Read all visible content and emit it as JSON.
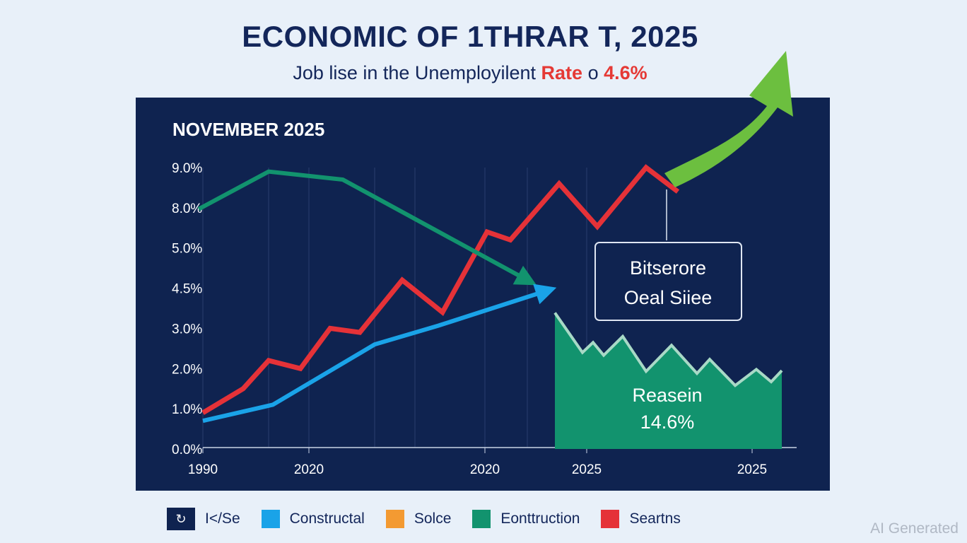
{
  "title": "ECONOMIC OF 1THRAR T, 2025",
  "subtitle": {
    "text": "Job lise in the Unemployilent",
    "highlight": "Rate",
    "connector": "o",
    "value": "4.6%"
  },
  "panel_heading": "NOVEMBER 2025",
  "annotation": {
    "line1": "Bitserore",
    "line2": "Oeal Siiee"
  },
  "area_label": {
    "line1": "Reasein",
    "line2": "14.6%"
  },
  "legend": [
    {
      "label": "I</Se",
      "color": "#0f2350",
      "icon": "refresh-icon"
    },
    {
      "label": "Constructal",
      "color": "#1aa3e8"
    },
    {
      "label": "Solce",
      "color": "#f39a32"
    },
    {
      "label": "Eonttruction",
      "color": "#12936e"
    },
    {
      "label": "Seartns",
      "color": "#e53238"
    }
  ],
  "watermark": "AI Generated",
  "chart_data": {
    "type": "line",
    "title": "NOVEMBER 2025",
    "y_ticks": [
      {
        "label": "9.0%",
        "value": 9
      },
      {
        "label": "8.0%",
        "value": 8
      },
      {
        "label": "5.0%",
        "value": 5
      },
      {
        "label": "4.5%",
        "value": 4.5
      },
      {
        "label": "3.0%",
        "value": 3
      },
      {
        "label": "2.0%",
        "value": 2
      },
      {
        "label": "1.0%",
        "value": 1
      },
      {
        "label": "0.0%",
        "value": 0
      }
    ],
    "x_ticks": [
      {
        "label": "1990",
        "value": 0
      },
      {
        "label": "2020",
        "value": 5
      },
      {
        "label": "2020",
        "value": 13.3
      },
      {
        "label": "2025",
        "value": 18.1
      },
      {
        "label": "2025",
        "value": 25.9
      }
    ],
    "xlim": [
      0,
      28
    ],
    "series": [
      {
        "name": "Seartns",
        "color": "#e53238",
        "kind": "line",
        "points": [
          [
            0,
            0.9
          ],
          [
            1.9,
            1.5
          ],
          [
            3.1,
            2.2
          ],
          [
            4.6,
            2.0
          ],
          [
            6.0,
            3.0
          ],
          [
            7.4,
            2.9
          ],
          [
            9.4,
            4.6
          ],
          [
            11.3,
            3.6
          ],
          [
            13.4,
            6.2
          ],
          [
            14.5,
            5.6
          ],
          [
            16.8,
            8.6
          ],
          [
            18.6,
            6.6
          ],
          [
            20.9,
            9.0
          ],
          [
            22.4,
            8.4
          ]
        ]
      },
      {
        "name": "Eonttruction",
        "color": "#12936e",
        "kind": "line-arrow",
        "points": [
          [
            -0.2,
            7.9
          ],
          [
            3.1,
            8.9
          ],
          [
            6.6,
            8.7
          ],
          [
            15.3,
            4.6
          ]
        ]
      },
      {
        "name": "Constructal",
        "color": "#1aa3e8",
        "kind": "line-arrow",
        "points": [
          [
            0,
            0.7
          ],
          [
            3.3,
            1.1
          ],
          [
            8.1,
            2.6
          ],
          [
            11.1,
            3.1
          ],
          [
            16.2,
            4.4
          ]
        ]
      },
      {
        "name": "Reasein",
        "color": "#12936e",
        "kind": "area",
        "points": [
          [
            16.6,
            3.58
          ],
          [
            17.9,
            2.4
          ],
          [
            18.4,
            2.65
          ],
          [
            18.9,
            2.33
          ],
          [
            19.8,
            2.8
          ],
          [
            20.9,
            1.93
          ],
          [
            22.1,
            2.58
          ],
          [
            23.3,
            1.88
          ],
          [
            23.9,
            2.23
          ],
          [
            25.1,
            1.58
          ],
          [
            26.1,
            1.98
          ],
          [
            26.8,
            1.67
          ],
          [
            27.3,
            1.95
          ]
        ]
      }
    ]
  }
}
